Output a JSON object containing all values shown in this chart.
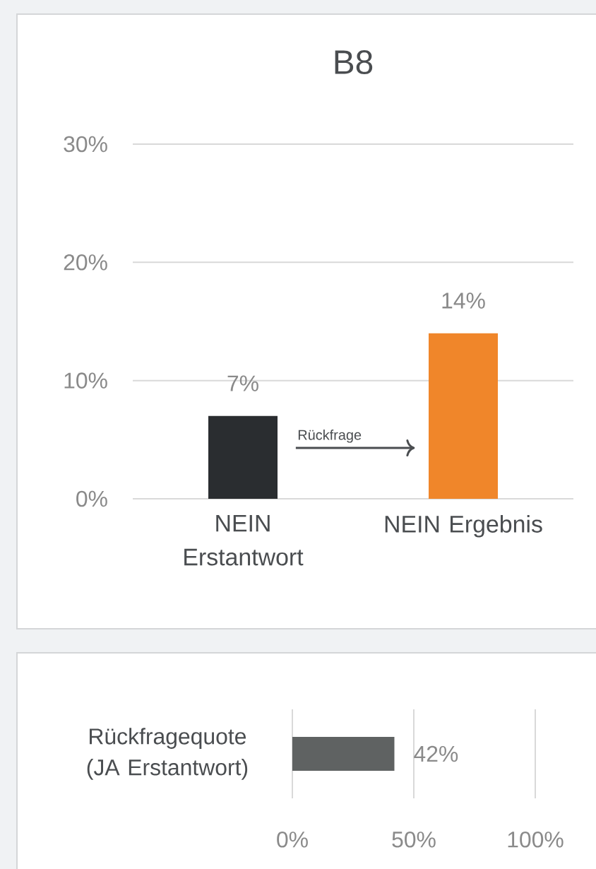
{
  "chart_data": [
    {
      "type": "bar",
      "title": "B8",
      "categories": [
        "NEIN Erstantwort",
        "NEIN Ergebnis"
      ],
      "values": [
        7,
        14
      ],
      "colors": [
        "#2a2d30",
        "#f0862a"
      ],
      "ylim": [
        0,
        30
      ],
      "yticks": [
        {
          "value": 0,
          "label": "0%"
        },
        {
          "value": 10,
          "label": "10%"
        },
        {
          "value": 20,
          "label": "20%"
        },
        {
          "value": 30,
          "label": "30%"
        }
      ],
      "grid": "y",
      "value_labels": [
        "7%",
        "14%"
      ],
      "annotations": [
        "Rückfrage"
      ]
    },
    {
      "type": "bar",
      "orientation": "horizontal",
      "categories": [
        "Rückfragequote (JA Erstantwort)"
      ],
      "values": [
        42
      ],
      "color": "#5f6262",
      "xlim": [
        0,
        100
      ],
      "xticks": [
        {
          "value": 0,
          "label": "0%"
        },
        {
          "value": 50,
          "label": "50%"
        },
        {
          "value": 100,
          "label": "100%"
        }
      ],
      "grid": "x",
      "value_labels": [
        "42%"
      ]
    }
  ]
}
